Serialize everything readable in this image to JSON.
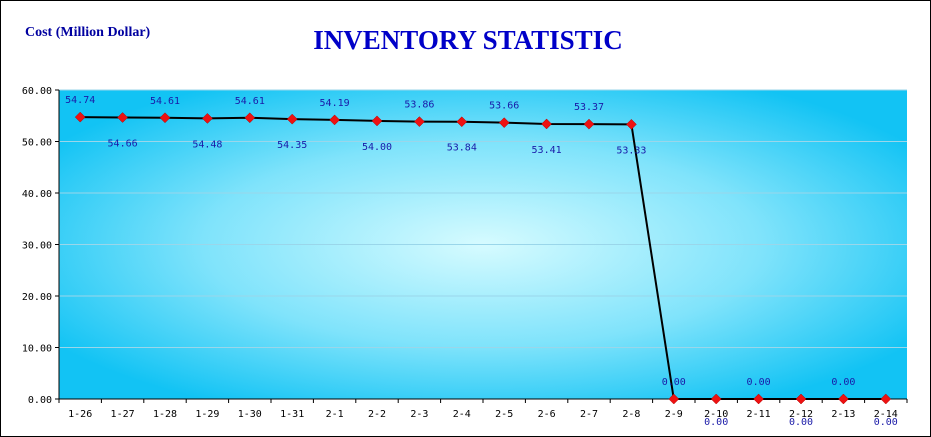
{
  "chart_data": {
    "type": "line",
    "title": "INVENTORY STATISTIC",
    "ylabel": "Cost (Million Dollar)",
    "xlabel": "",
    "ylim": [
      0,
      60
    ],
    "yticks": [
      "0.00",
      "10.00",
      "20.00",
      "30.00",
      "40.00",
      "50.00",
      "60.00"
    ],
    "grid": true,
    "legend": "none",
    "categories": [
      "1-26",
      "1-27",
      "1-28",
      "1-29",
      "1-30",
      "1-31",
      "2-1",
      "2-2",
      "2-3",
      "2-4",
      "2-5",
      "2-6",
      "2-7",
      "2-8",
      "2-9",
      "2-10",
      "2-11",
      "2-12",
      "2-13",
      "2-14"
    ],
    "series": [
      {
        "values": [
          54.74,
          54.66,
          54.61,
          54.48,
          54.61,
          54.35,
          54.19,
          54.0,
          53.86,
          53.84,
          53.66,
          53.41,
          53.37,
          53.33,
          0.0,
          0.0,
          0.0,
          0.0,
          0.0,
          0.0
        ],
        "labels": [
          "54.74",
          "54.66",
          "54.61",
          "54.48",
          "54.61",
          "54.35",
          "54.19",
          "54.00",
          "53.86",
          "53.84",
          "53.66",
          "53.41",
          "53.37",
          "53.33",
          "0.00",
          "0.00",
          "0.00",
          "0.00",
          "0.00",
          "0.00"
        ]
      }
    ],
    "colors": {
      "line": "#000000",
      "marker": "#ee1111",
      "label": "#1a1aa8",
      "title": "#0000c8",
      "plot_bg_center": "#d6fbff",
      "plot_bg_edge": "#12c3f4",
      "grid": "#9ad6ea"
    }
  }
}
